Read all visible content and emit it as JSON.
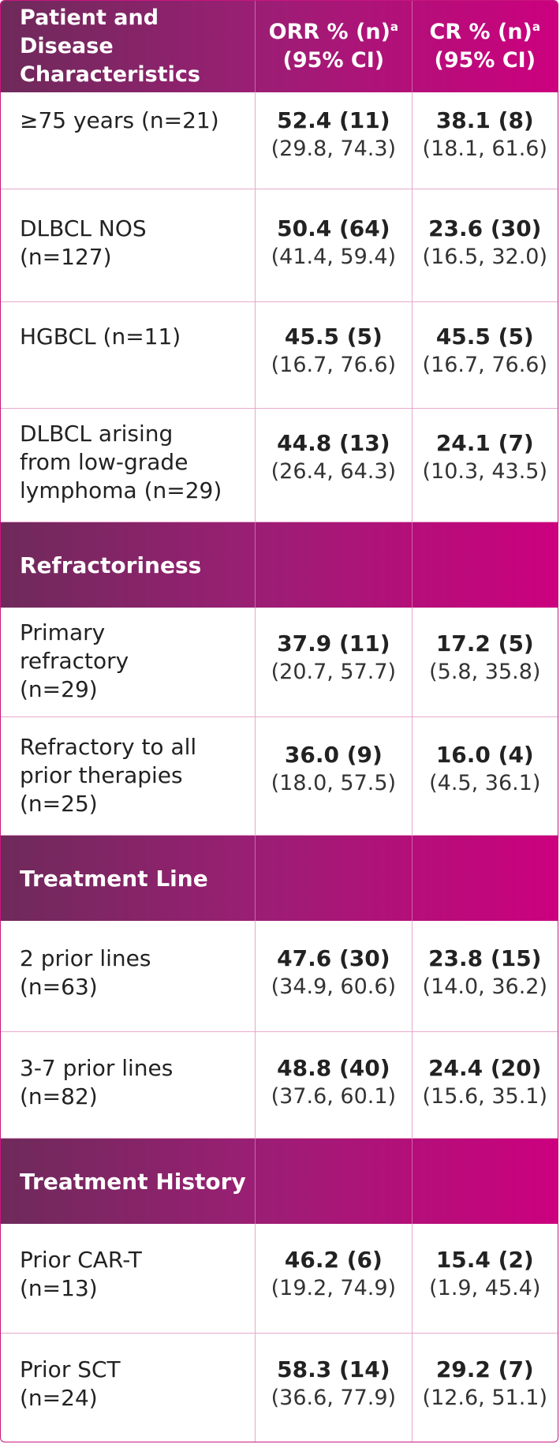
{
  "header": {
    "col1": "Patient and Disease\nCharacteristics",
    "col2_line1": "ORR % (n)",
    "col2_sup": "a",
    "col2_line2": "(95% CI)",
    "col3_line1": "CR % (n)",
    "col3_sup": "a",
    "col3_line2": "(95% CI)"
  },
  "rows": [
    {
      "label": "≥75 years (n=21)",
      "orr": "52.4 (11)",
      "orr_ci": "(29.8, 74.3)",
      "cr": "38.1 (8)",
      "cr_ci": "(18.1, 61.6)"
    },
    {
      "label": "DLBCL NOS\n(n=127)",
      "orr": "50.4 (64)",
      "orr_ci": "(41.4, 59.4)",
      "cr": "23.6 (30)",
      "cr_ci": "(16.5, 32.0)"
    },
    {
      "label": "HGBCL (n=11)",
      "orr": "45.5 (5)",
      "orr_ci": "(16.7, 76.6)",
      "cr": "45.5 (5)",
      "cr_ci": "(16.7, 76.6)"
    },
    {
      "label": "DLBCL arising\nfrom low-grade\nlymphoma (n=29)",
      "orr": "44.8 (13)",
      "orr_ci": "(26.4, 64.3)",
      "cr": "24.1 (7)",
      "cr_ci": "(10.3, 43.5)"
    }
  ],
  "sections": [
    {
      "title": "Refractoriness",
      "rows": [
        {
          "label": "Primary\nrefractory\n(n=29)",
          "orr": "37.9 (11)",
          "orr_ci": "(20.7, 57.7)",
          "cr": "17.2 (5)",
          "cr_ci": "(5.8, 35.8)"
        },
        {
          "label": "Refractory to all\nprior therapies\n(n=25)",
          "orr": "36.0 (9)",
          "orr_ci": "(18.0, 57.5)",
          "cr": "16.0 (4)",
          "cr_ci": "(4.5, 36.1)"
        }
      ]
    },
    {
      "title": "Treatment Line",
      "rows": [
        {
          "label": "2 prior lines\n(n=63)",
          "orr": "47.6 (30)",
          "orr_ci": "(34.9, 60.6)",
          "cr": "23.8 (15)",
          "cr_ci": "(14.0, 36.2)"
        },
        {
          "label": "3-7 prior lines\n(n=82)",
          "orr": "48.8 (40)",
          "orr_ci": "(37.6, 60.1)",
          "cr": "24.4 (20)",
          "cr_ci": "(15.6, 35.1)"
        }
      ]
    },
    {
      "title": "Treatment History",
      "rows": [
        {
          "label": "Prior CAR-T\n(n=13)",
          "orr": "46.2 (6)",
          "orr_ci": "(19.2, 74.9)",
          "cr": "15.4 (2)",
          "cr_ci": "(1.9, 45.4)"
        },
        {
          "label": "Prior SCT\n(n=24)",
          "orr": "58.3 (14)",
          "orr_ci": "(36.6, 77.9)",
          "cr": "29.2 (7)",
          "cr_ci": "(12.6, 51.1)"
        }
      ]
    }
  ]
}
